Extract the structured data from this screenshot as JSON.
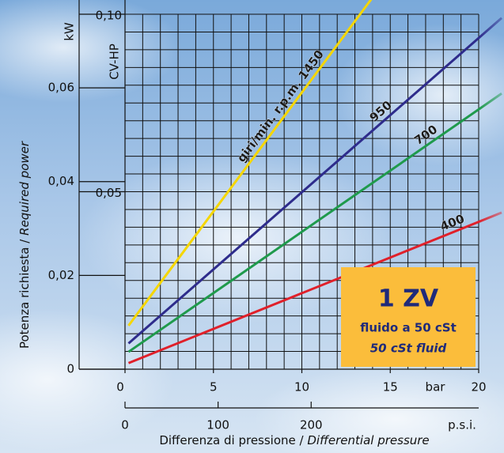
{
  "chart_data": {
    "type": "line",
    "ylabel": {
      "it": "Potenza richiesta /",
      "en": "Required power"
    },
    "xlabel": {
      "it": "Differenza di pressione /",
      "en": "Differential pressure"
    },
    "x": [
      0.2,
      21.3
    ],
    "xlim": [
      0,
      20
    ],
    "xticks": [
      0,
      5,
      10,
      15,
      20
    ],
    "x_unit": "bar",
    "x2lim": [
      0,
      380
    ],
    "x2ticks": [
      0,
      100,
      200
    ],
    "x2_unit": "p.s.i.",
    "ylim": [
      0,
      0.0757
    ],
    "yticks": [
      0,
      {
        "value": 0.02,
        "label": "0,02"
      },
      {
        "value": 0.04,
        "label": "0,04"
      },
      {
        "value": 0.06,
        "label": "0,06"
      }
    ],
    "y_unit": "kW",
    "y2lim": [
      0,
      0.1
    ],
    "y2ticks": [
      {
        "value": 0.05,
        "label": "0,05"
      },
      {
        "value": 0.1,
        "label": "0,10"
      }
    ],
    "y2_unit": "CV-HP",
    "grid": true,
    "x_grid_step": 1,
    "y2_grid_step": 0.005,
    "series": [
      {
        "name": "giri/min. r.p.m. 1450",
        "color": "#f5d600",
        "values": [
          0.0093,
          0.1163
        ]
      },
      {
        "name": "950",
        "color": "#2e2c8c",
        "values": [
          0.0055,
          0.0749
        ]
      },
      {
        "name": "700",
        "color": "#1f9a4c",
        "values": [
          0.0037,
          0.0588
        ]
      },
      {
        "name": "400",
        "color": "#e0202a",
        "values": [
          0.0013,
          0.0334
        ]
      }
    ],
    "annotation": {
      "title": "1 ZV",
      "lines": [
        "fluido a 50 cSt",
        "50 cSt fluid"
      ]
    }
  }
}
